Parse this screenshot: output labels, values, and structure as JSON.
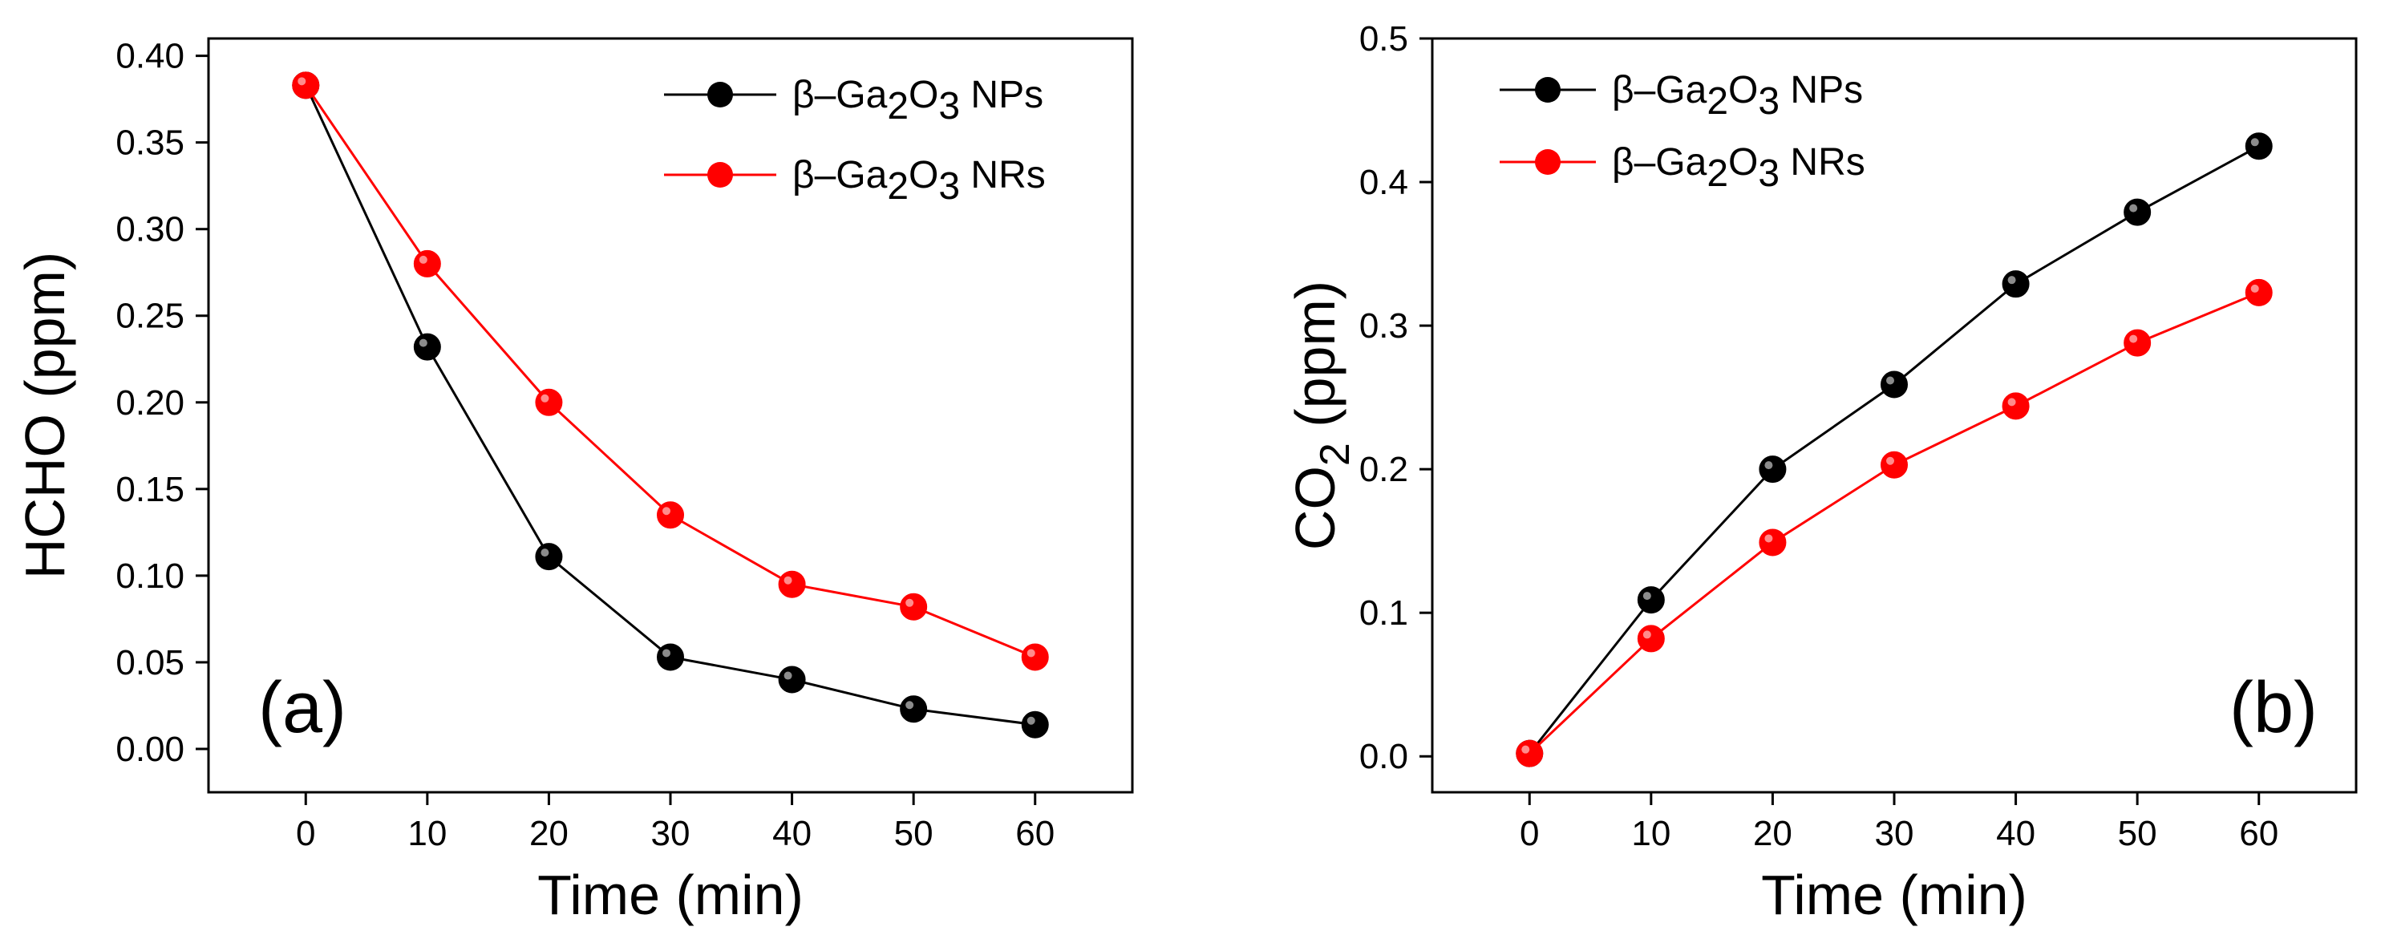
{
  "colors": {
    "nps": "#000000",
    "nrs": "#ff0000",
    "axis": "#000000",
    "background": "#ffffff"
  },
  "chart_data": [
    {
      "type": "line",
      "panel_label": "(a)",
      "title": "",
      "xlabel": "Time (min)",
      "ylabel": "HCHO (ppm)",
      "x": [
        0,
        10,
        20,
        30,
        40,
        50,
        60
      ],
      "xlim": [
        -8,
        68
      ],
      "ylim": [
        -0.025,
        0.41
      ],
      "xticks": [
        "0",
        "10",
        "20",
        "30",
        "40",
        "50",
        "60"
      ],
      "yticks": [
        "0.00",
        "0.05",
        "0.10",
        "0.15",
        "0.20",
        "0.25",
        "0.30",
        "0.35",
        "0.40"
      ],
      "grid": false,
      "legend_position": "top-right",
      "series": [
        {
          "name": "NPs",
          "label_prefix": "β–Ga",
          "label_sub1": "2",
          "label_mid": "O",
          "label_sub2": "3",
          "label_suffix": " NPs",
          "color": "#000000",
          "values": [
            0.383,
            0.232,
            0.111,
            0.053,
            0.04,
            0.023,
            0.014
          ]
        },
        {
          "name": "NRs",
          "label_prefix": "β–Ga",
          "label_sub1": "2",
          "label_mid": "O",
          "label_sub2": "3",
          "label_suffix": " NRs",
          "color": "#ff0000",
          "values": [
            0.383,
            0.28,
            0.2,
            0.135,
            0.095,
            0.082,
            0.053
          ]
        }
      ]
    },
    {
      "type": "line",
      "panel_label": "(b)",
      "title": "",
      "xlabel": "Time (min)",
      "ylabel_main": "CO",
      "ylabel_sub": "2",
      "ylabel_rest": " (ppm)",
      "x": [
        0,
        10,
        20,
        30,
        40,
        50,
        60
      ],
      "xlim": [
        -8,
        68
      ],
      "ylim": [
        -0.025,
        0.5
      ],
      "xticks": [
        "0",
        "10",
        "20",
        "30",
        "40",
        "50",
        "60"
      ],
      "yticks": [
        "0.0",
        "0.1",
        "0.2",
        "0.3",
        "0.4",
        "0.5"
      ],
      "grid": false,
      "legend_position": "top-left",
      "series": [
        {
          "name": "NPs",
          "label_prefix": "β–Ga",
          "label_sub1": "2",
          "label_mid": "O",
          "label_sub2": "3",
          "label_suffix": " NPs",
          "color": "#000000",
          "values": [
            0.002,
            0.109,
            0.2,
            0.259,
            0.329,
            0.379,
            0.425
          ]
        },
        {
          "name": "NRs",
          "label_prefix": "β–Ga",
          "label_sub1": "2",
          "label_mid": "O",
          "label_sub2": "3",
          "label_suffix": " NRs",
          "color": "#ff0000",
          "values": [
            0.002,
            0.082,
            0.149,
            0.203,
            0.244,
            0.288,
            0.323
          ]
        }
      ]
    }
  ]
}
